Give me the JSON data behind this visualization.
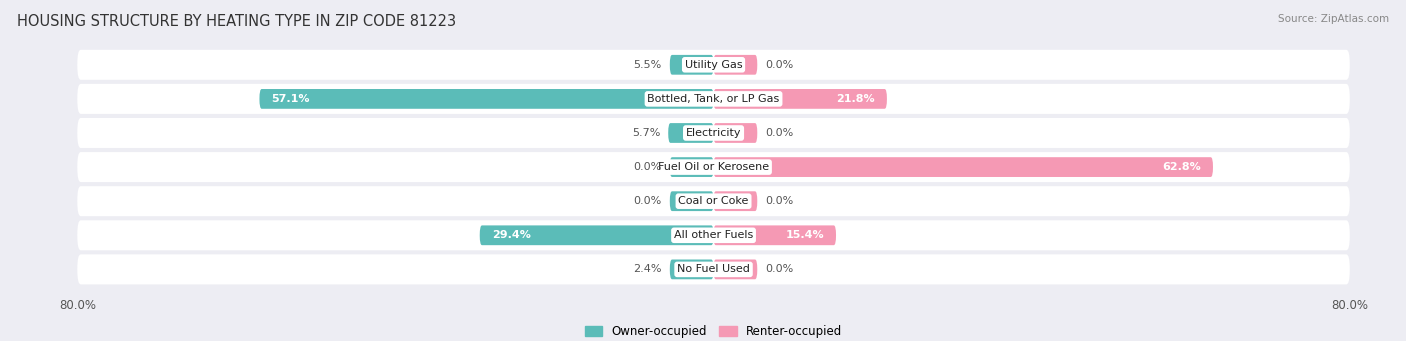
{
  "title": "HOUSING STRUCTURE BY HEATING TYPE IN ZIP CODE 81223",
  "source": "Source: ZipAtlas.com",
  "categories": [
    "Utility Gas",
    "Bottled, Tank, or LP Gas",
    "Electricity",
    "Fuel Oil or Kerosene",
    "Coal or Coke",
    "All other Fuels",
    "No Fuel Used"
  ],
  "owner_values": [
    5.5,
    57.1,
    5.7,
    0.0,
    0.0,
    29.4,
    2.4
  ],
  "renter_values": [
    0.0,
    21.8,
    0.0,
    62.8,
    0.0,
    15.4,
    0.0
  ],
  "owner_color": "#5bbcb8",
  "renter_color": "#f599b4",
  "background_color": "#ededf3",
  "row_bg_color": "#ffffff",
  "axis_min": -80.0,
  "axis_max": 80.0,
  "min_bar_width": 5.5,
  "title_fontsize": 10.5,
  "cat_fontsize": 8.0,
  "pct_fontsize": 8.0,
  "tick_fontsize": 8.5,
  "source_fontsize": 7.5,
  "legend_fontsize": 8.5
}
